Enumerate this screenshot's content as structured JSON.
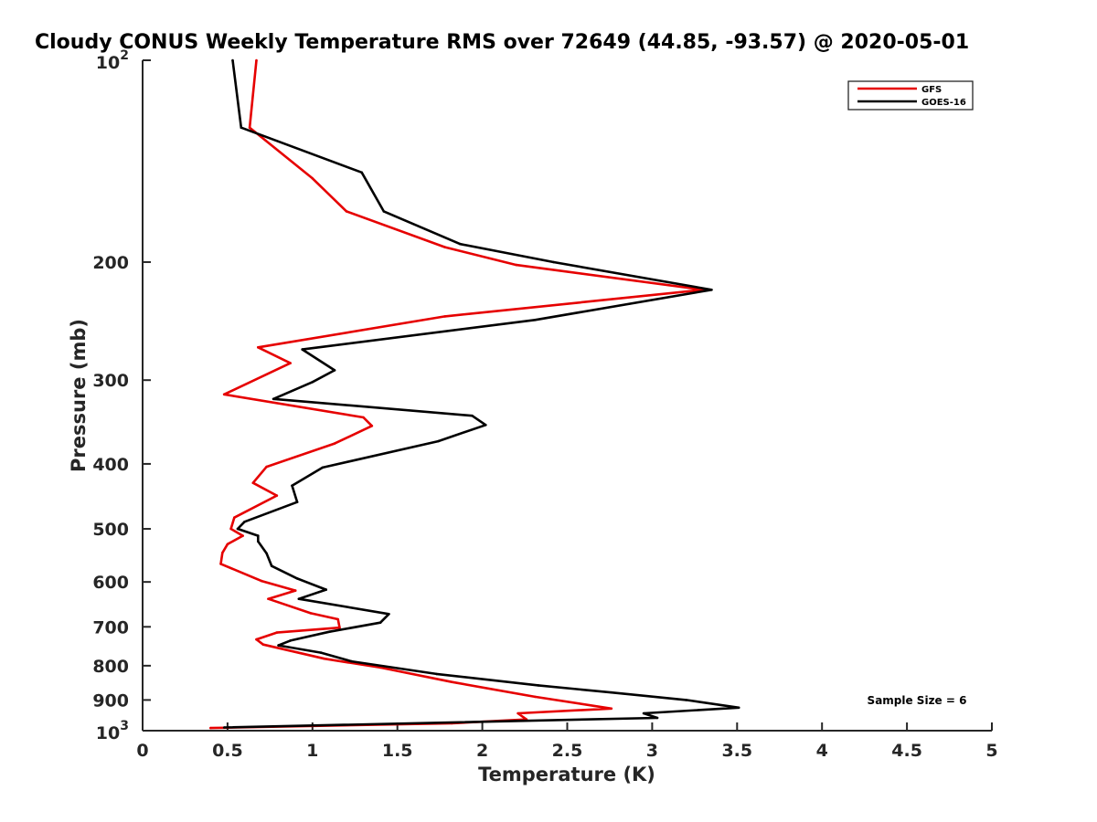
{
  "chart_data": {
    "type": "line",
    "title": "Cloudy CONUS Weekly Temperature RMS over 72649 (44.85, -93.57) @ 2020-05-01",
    "xlabel": "Temperature (K)",
    "ylabel": "Pressure (mb)",
    "xlim": [
      0,
      5
    ],
    "ylim": [
      100,
      1000
    ],
    "yscale": "log",
    "y_reversed": true,
    "grid": false,
    "legend_position": "top-right",
    "x_ticks": [
      {
        "value": 0,
        "label": "0"
      },
      {
        "value": 0.5,
        "label": "0.5"
      },
      {
        "value": 1,
        "label": "1"
      },
      {
        "value": 1.5,
        "label": "1.5"
      },
      {
        "value": 2,
        "label": "2"
      },
      {
        "value": 2.5,
        "label": "2.5"
      },
      {
        "value": 3,
        "label": "3"
      },
      {
        "value": 3.5,
        "label": "3.5"
      },
      {
        "value": 4,
        "label": "4"
      },
      {
        "value": 4.5,
        "label": "4.5"
      },
      {
        "value": 5,
        "label": "5"
      }
    ],
    "y_ticks": [
      {
        "value": 100,
        "base": "10",
        "exp": "2"
      },
      {
        "value": 200,
        "label": "200"
      },
      {
        "value": 300,
        "label": "300"
      },
      {
        "value": 400,
        "label": "400"
      },
      {
        "value": 500,
        "label": "500"
      },
      {
        "value": 600,
        "label": "600"
      },
      {
        "value": 700,
        "label": "700"
      },
      {
        "value": 800,
        "label": "800"
      },
      {
        "value": 900,
        "label": "900"
      },
      {
        "value": 1000,
        "base": "10",
        "exp": "3"
      }
    ],
    "annotation": "Sample Size = 6",
    "series": [
      {
        "name": "GFS",
        "color": "#e60000",
        "points": [
          [
            0.67,
            100
          ],
          [
            0.63,
            126
          ],
          [
            1.0,
            150
          ],
          [
            1.2,
            168
          ],
          [
            1.78,
            190
          ],
          [
            2.2,
            202
          ],
          [
            3.3,
            220
          ],
          [
            1.78,
            241
          ],
          [
            0.68,
            268
          ],
          [
            0.87,
            283
          ],
          [
            0.48,
            315
          ],
          [
            1.3,
            341
          ],
          [
            1.35,
            351
          ],
          [
            1.13,
            373
          ],
          [
            0.73,
            404
          ],
          [
            0.65,
            427
          ],
          [
            0.79,
            446
          ],
          [
            0.54,
            481
          ],
          [
            0.52,
            500
          ],
          [
            0.59,
            512
          ],
          [
            0.5,
            527
          ],
          [
            0.47,
            543
          ],
          [
            0.46,
            564
          ],
          [
            0.7,
            598
          ],
          [
            0.9,
            618
          ],
          [
            0.74,
            636
          ],
          [
            0.99,
            668
          ],
          [
            1.15,
            682
          ],
          [
            1.16,
            702
          ],
          [
            0.79,
            714
          ],
          [
            0.67,
            731
          ],
          [
            0.71,
            744
          ],
          [
            1.07,
            781
          ],
          [
            1.4,
            805
          ],
          [
            1.82,
            846
          ],
          [
            2.31,
            890
          ],
          [
            2.76,
            927
          ],
          [
            2.21,
            942
          ],
          [
            2.26,
            962
          ],
          [
            1.82,
            975
          ],
          [
            0.4,
            991
          ]
        ]
      },
      {
        "name": "GOES-16",
        "color": "#000000",
        "points": [
          [
            0.53,
            100
          ],
          [
            0.58,
            126
          ],
          [
            1.29,
            147
          ],
          [
            1.42,
            168
          ],
          [
            1.87,
            188
          ],
          [
            2.42,
            200
          ],
          [
            3.35,
            220
          ],
          [
            2.31,
            244
          ],
          [
            0.94,
            270
          ],
          [
            1.13,
            290
          ],
          [
            1.0,
            302
          ],
          [
            0.77,
            320
          ],
          [
            1.94,
            339
          ],
          [
            2.02,
            350
          ],
          [
            1.74,
            370
          ],
          [
            1.06,
            405
          ],
          [
            0.88,
            431
          ],
          [
            0.91,
            456
          ],
          [
            0.6,
            488
          ],
          [
            0.56,
            500
          ],
          [
            0.68,
            512
          ],
          [
            0.68,
            522
          ],
          [
            0.73,
            544
          ],
          [
            0.76,
            568
          ],
          [
            0.91,
            593
          ],
          [
            1.08,
            616
          ],
          [
            0.92,
            636
          ],
          [
            1.45,
            670
          ],
          [
            1.4,
            690
          ],
          [
            1.1,
            712
          ],
          [
            0.87,
            734
          ],
          [
            0.8,
            746
          ],
          [
            1.05,
            765
          ],
          [
            1.23,
            788
          ],
          [
            1.73,
            823
          ],
          [
            2.33,
            856
          ],
          [
            2.76,
            877
          ],
          [
            3.2,
            900
          ],
          [
            3.51,
            924
          ],
          [
            2.95,
            942
          ],
          [
            3.03,
            957
          ],
          [
            0.48,
            989
          ]
        ]
      }
    ]
  }
}
